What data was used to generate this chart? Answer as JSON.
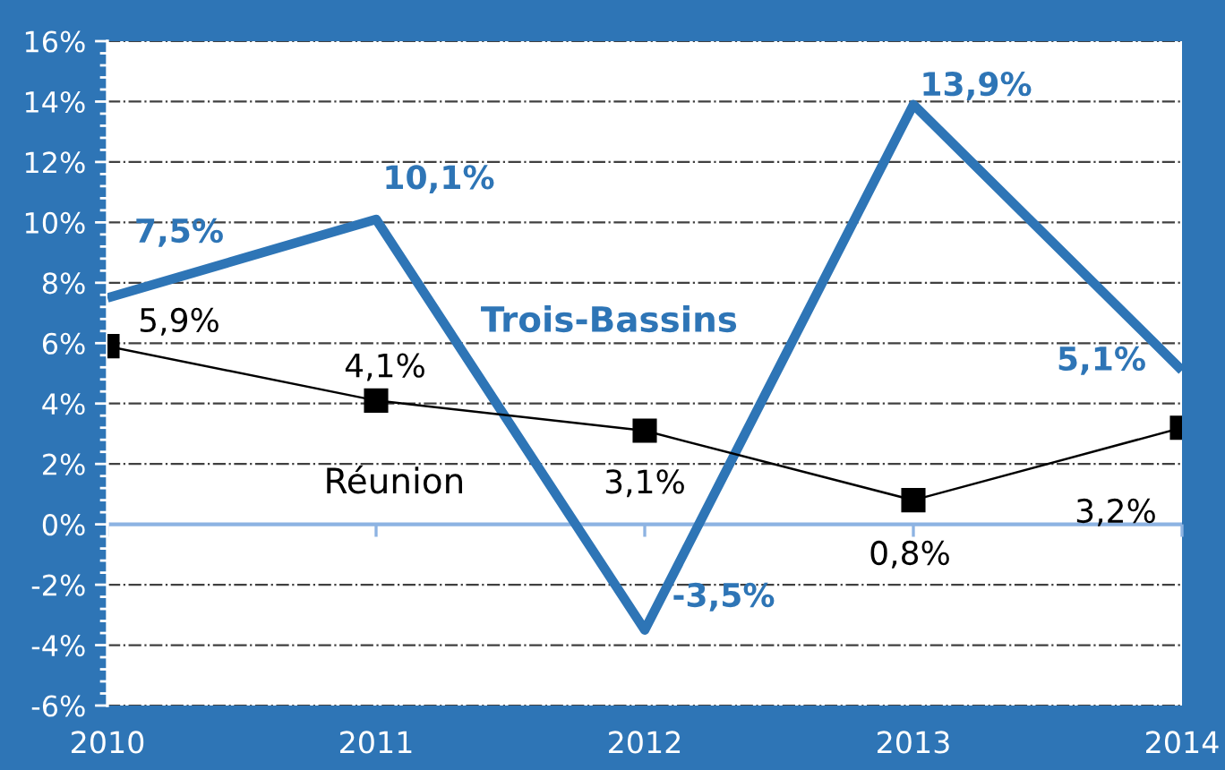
{
  "chart_data": {
    "type": "line",
    "categories": [
      "2010",
      "2011",
      "2012",
      "2013",
      "2014"
    ],
    "series": [
      {
        "name": "Trois-Bassins",
        "color": "#2e75b6",
        "values": [
          7.5,
          10.1,
          -3.5,
          13.9,
          5.1
        ],
        "value_labels": [
          "7,5%",
          "10,1%",
          "-3,5%",
          "13,9%",
          "5,1%"
        ],
        "marker": "none"
      },
      {
        "name": "Réunion",
        "color": "#000000",
        "values": [
          5.9,
          4.1,
          3.1,
          0.8,
          3.2
        ],
        "value_labels": [
          "5,9%",
          "4,1%",
          "3,1%",
          "0,8%",
          "3,2%"
        ],
        "marker": "square"
      }
    ],
    "ylim": [
      -6,
      16
    ],
    "yticks": [
      {
        "value": -6,
        "label": "-6%"
      },
      {
        "value": -4,
        "label": "-4%"
      },
      {
        "value": -2,
        "label": "-2%"
      },
      {
        "value": 0,
        "label": "0%"
      },
      {
        "value": 2,
        "label": "2%"
      },
      {
        "value": 4,
        "label": "4%"
      },
      {
        "value": 6,
        "label": "6%"
      },
      {
        "value": 8,
        "label": "8%"
      },
      {
        "value": 10,
        "label": "10%"
      },
      {
        "value": 12,
        "label": "12%"
      },
      {
        "value": 14,
        "label": "14%"
      },
      {
        "value": 16,
        "label": "16%"
      }
    ],
    "ref_lines": [
      {
        "axis": "y",
        "value": 0,
        "color": "#8db3e2"
      }
    ],
    "grid": "y"
  }
}
